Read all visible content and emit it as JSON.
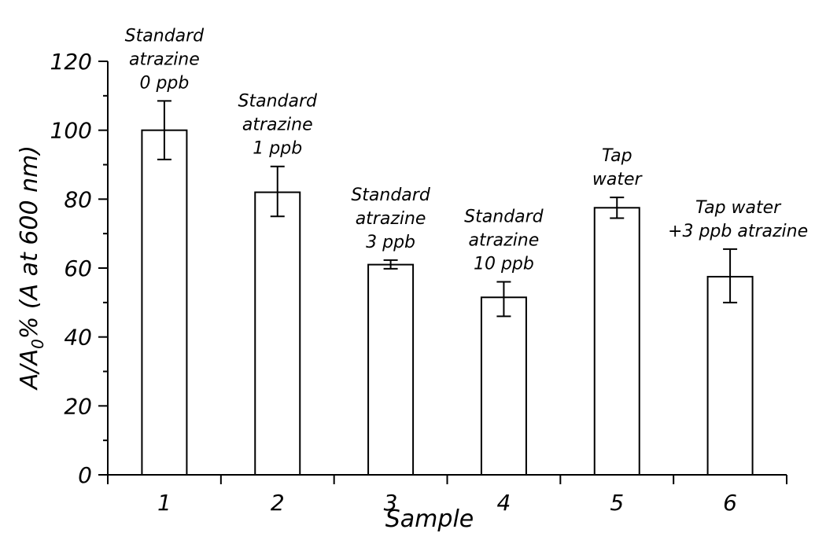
{
  "chart_data": {
    "type": "bar",
    "categories": [
      "1",
      "2",
      "3",
      "4",
      "5",
      "6"
    ],
    "values": [
      100,
      82,
      61,
      51.5,
      77.5,
      57.5
    ],
    "error_low": [
      91.5,
      75,
      59.8,
      46,
      74.5,
      50
    ],
    "error_high": [
      108.5,
      89.5,
      62.3,
      56,
      80.5,
      65.5
    ],
    "annotations": [
      [
        "Standard",
        "atrazine",
        "0 ppb"
      ],
      [
        "Standard",
        "atrazine",
        "1 ppb"
      ],
      [
        "Standard",
        "atrazine",
        "3 ppb"
      ],
      [
        "Standard",
        "atrazine",
        "10 ppb"
      ],
      [
        "Tap",
        "water"
      ],
      [
        "Tap water",
        "+3 ppb  atrazine"
      ]
    ],
    "title": "",
    "xlabel": "Sample",
    "ylabel_main": "A/A",
    "ylabel_sub": "0",
    "ylabel_rest": "% (A at 600 nm)",
    "ylim": [
      0,
      120
    ],
    "yticks": [
      0,
      20,
      40,
      60,
      80,
      100,
      120
    ],
    "grid": false,
    "colors": {
      "bar_fill": "#ffffff",
      "stroke": "#000000"
    }
  }
}
